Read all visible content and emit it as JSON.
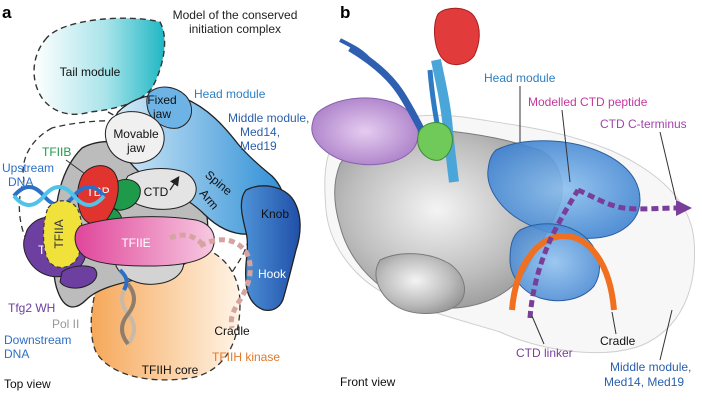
{
  "figure": {
    "panel_a": {
      "letter": "a",
      "title_line1": "Model of the conserved",
      "title_line2": "initiation complex",
      "view_caption": "Top view",
      "labels": {
        "tail_module": "Tail module",
        "head_module": "Head module",
        "fixed_jaw_1": "Fixed",
        "fixed_jaw_2": "jaw",
        "movable_jaw_1": "Movable",
        "movable_jaw_2": "jaw",
        "middle_module_1": "Middle module,",
        "middle_module_2": "Med14,",
        "middle_module_3": "Med19",
        "spine": "Spine",
        "arm": "Arm",
        "knob": "Knob",
        "hook": "Hook",
        "cradle": "Cradle",
        "ctd": "CTD",
        "tfiib": "TFIIB",
        "upstream_dna_1": "Upstream",
        "upstream_dna_2": "DNA",
        "tbp": "TBP",
        "tfiia": "TFIIA",
        "tfiie": "TFIIE",
        "tfiif": "TFIIF",
        "tfg2_wh": "Tfg2 WH",
        "pol_ii": "Pol II",
        "downstream_dna_1": "Downstream",
        "downstream_dna_2": "DNA",
        "tfiih_core": "TFIIH core",
        "tfiih_kinase": "TFIIH kinase"
      }
    },
    "panel_b": {
      "letter": "b",
      "view_caption": "Front view",
      "labels": {
        "head_module": "Head module",
        "modelled_ctd": "Modelled CTD peptide",
        "ctd_c_terminus": "CTD C-terminus",
        "ctd_linker": "CTD linker",
        "cradle": "Cradle",
        "middle_module_1": "Middle module,",
        "middle_module_2": "Med14, Med19"
      }
    },
    "colors": {
      "tail_cyan": "#1fb7c4",
      "head_blue": "#2e8fd6",
      "middle_blue": "#2a6cc0",
      "tfiib_green": "#1f9a4a",
      "tbp_red": "#e2342f",
      "tfiia_yellow": "#f0e23a",
      "tfiie_magenta": "#e0459a",
      "tfiif_purple": "#6d3fa0",
      "pol_ii_grey": "#b5b5b5",
      "tfiih_orange": "#f6a85a",
      "tfiih_kinase_label": "#e07a2b",
      "ctd_linker_purple": "#7a3e9a",
      "cradle_orange": "#f07020"
    }
  }
}
